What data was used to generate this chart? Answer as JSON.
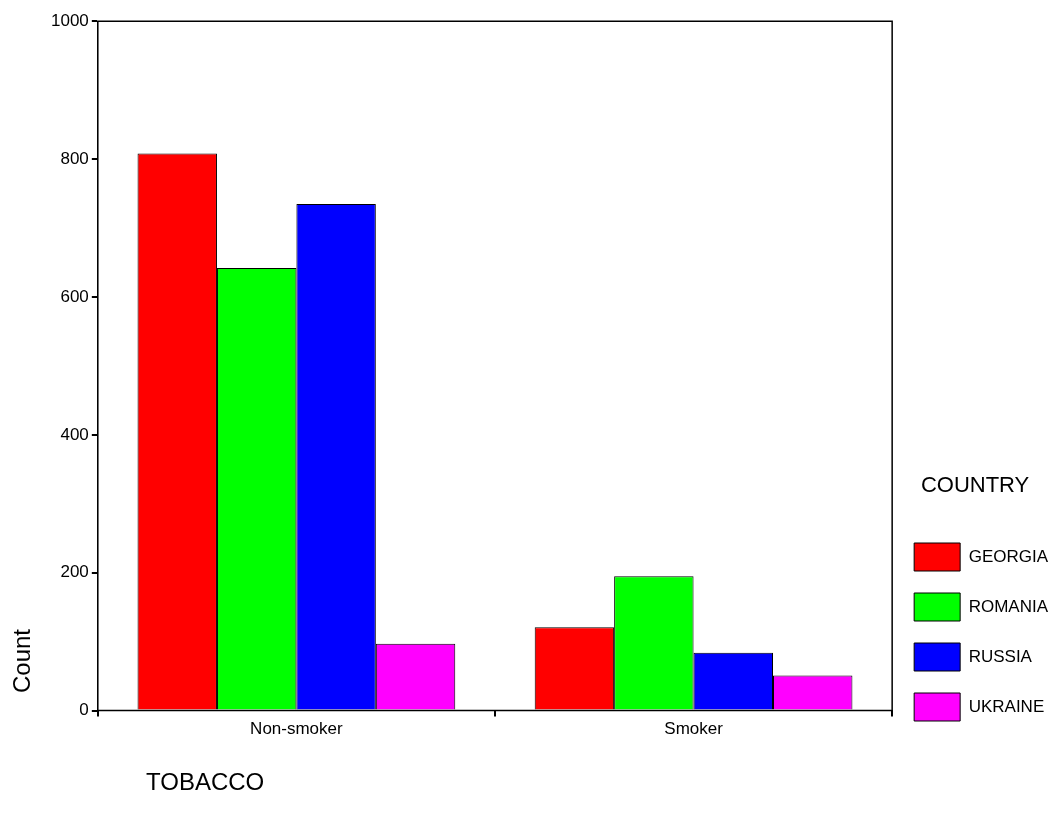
{
  "chart_data": {
    "type": "bar",
    "xlabel": "TOBACCO",
    "ylabel": "Count",
    "legend_title": "COUNTRY",
    "legend": "right",
    "categories": [
      "Non-smoker",
      "Smoker"
    ],
    "series": [
      {
        "name": "GEORGIA",
        "color": "#ff0000",
        "values": [
          808,
          121
        ]
      },
      {
        "name": "ROMANIA",
        "color": "#00ff00",
        "values": [
          642,
          195
        ]
      },
      {
        "name": "RUSSIA",
        "color": "#0000ff",
        "values": [
          735,
          84
        ]
      },
      {
        "name": "UKRAINE",
        "color": "#ff00ff",
        "values": [
          97,
          51
        ]
      }
    ],
    "ylim": [
      0,
      1000
    ],
    "yticks": [
      0,
      200,
      400,
      600,
      800,
      1000
    ],
    "grid": false
  }
}
